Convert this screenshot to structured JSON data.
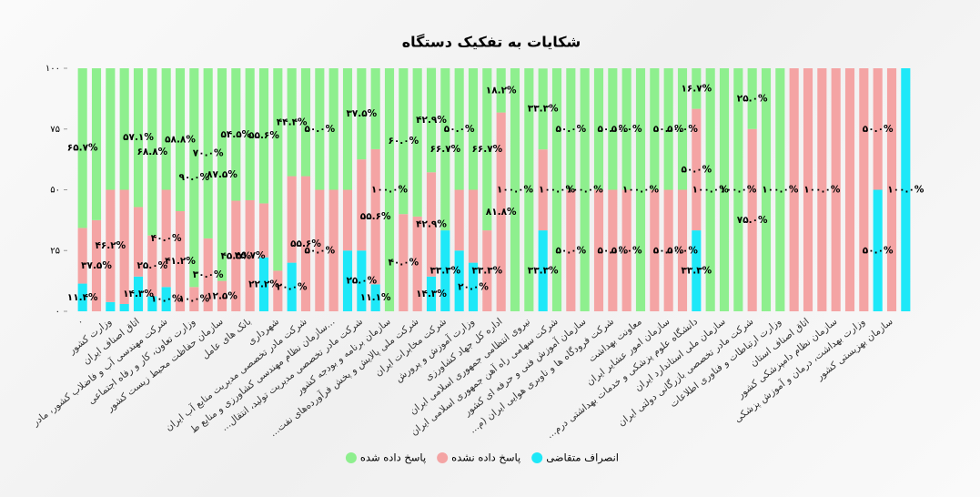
{
  "chart_data": {
    "type": "stacked_bar",
    "title": "شکایات به تفکیک دستگاه",
    "categories": [
      "۰",
      null,
      "وزارت کشور",
      null,
      "اتاق اصناف ایران",
      null,
      "شرکت مهندسی آب و فاضلاب کشور، مادر",
      null,
      "وزارت تعاون، کار و رفاه اجتماعی",
      null,
      "سازمان حفاظت محیط زیست کشور",
      null,
      "بانک های عامل",
      null,
      "شهرداری",
      null,
      "شرکت مادر تخصصی مدیریت منابع آب ایران",
      null,
      "سازمان نظام مهندسی کشاورزی و منابع ط...",
      null,
      "...شرکت مادر تخصصی مدیریت تولید، انتقال",
      null,
      "سازمان برنامه و بودجه کشور",
      null,
      "...شرکت ملی پالایش و پخش فرآورده‌های نفت",
      null,
      "شرکت مخابرات ایران",
      null,
      "وزارت آموزش و پرورش",
      null,
      "اداره کل جهاد کشاورزی",
      null,
      "نیروی انتظامی جمهوری اسلامی ایران",
      null,
      "شرکت سهامی راه آهن جمهوری اسلامی ایران",
      null,
      "سازمان آموزش فنی و حرفه ای کشور",
      null,
      "...شرکت فرودگاه ها و ناوبری هوایی ایران (م",
      null,
      "معاونت بهداشت",
      null,
      "سازمان امور عشایر ایران",
      null,
      "...دانشگاه علوم پزشکی و خدمات بهداشتی درم",
      null,
      "سازمان ملی استاندارد ایران",
      null,
      "شرکت مادر تخصصی بازرگانی دولتی ایران",
      null,
      "وزارت ارتباطات و فناوری اطلاعات",
      null,
      "اتاق اصناف استان",
      null,
      "سازمان نظام دامپزشکی کشور",
      null,
      "وزارت بهداشت، درمان و آموزش پزشکی",
      null,
      "سازمان بهزیستی کشور",
      null
    ],
    "series": [
      {
        "name": "انصراف متقاضی",
        "color": "#1ee8f8",
        "values": [
          11.4,
          0,
          3.8,
          3,
          14.3,
          6.2,
          10,
          0,
          0,
          0,
          0,
          0,
          0,
          22.2,
          0,
          20,
          0,
          0,
          0,
          25,
          25,
          11.1,
          0,
          0,
          0,
          14.3,
          33.3,
          25,
          20,
          0,
          0,
          0,
          0,
          33.3,
          0,
          0,
          0,
          0,
          0,
          0,
          0,
          0,
          0,
          0,
          33.3,
          0,
          0,
          0,
          0,
          0,
          0,
          0,
          0,
          0,
          0,
          0,
          0,
          50,
          0,
          100
        ],
        "value_labels": [
          "۱۱.۴%",
          null,
          null,
          null,
          "۱۴.۳%",
          null,
          "۱۰.۰%",
          null,
          null,
          null,
          null,
          null,
          null,
          "۲۲.۲%",
          null,
          "۲۰.۰%",
          null,
          null,
          null,
          null,
          "۲۵.۰%",
          "۱۱.۱%",
          null,
          null,
          null,
          "۱۴.۳%",
          "۳۳.۳%",
          null,
          "۲۰.۰%",
          null,
          null,
          null,
          null,
          "۳۳.۳%",
          null,
          null,
          null,
          null,
          null,
          null,
          null,
          null,
          null,
          null,
          "۳۳.۳%",
          null,
          null,
          null,
          null,
          null,
          null,
          null,
          null,
          null,
          null,
          null,
          null,
          "۵۰.۰%",
          null,
          "۱۰۰.۰%"
        ]
      },
      {
        "name": "پاسخ داده نشده",
        "color": "#f4a4a4",
        "values": [
          22.9,
          37.5,
          46.2,
          47,
          28.6,
          25,
          40,
          41.2,
          10,
          30,
          12.5,
          45.5,
          45.7,
          22.2,
          16.7,
          35.6,
          55.6,
          50,
          50,
          25,
          37.5,
          55.6,
          0,
          40,
          39,
          42.9,
          0,
          25,
          30,
          33.3,
          81.8,
          0,
          0,
          33.3,
          0,
          50,
          0,
          50,
          50,
          50,
          0,
          50,
          50,
          50,
          50,
          0,
          0,
          0,
          75,
          0,
          0,
          100,
          100,
          100,
          100,
          100,
          100,
          50,
          100,
          0
        ],
        "value_labels": [
          null,
          "۳۷.۵%",
          "۴۶.۲%",
          null,
          null,
          "۲۵.۰%",
          "۴۰.۰%",
          "۴۱.۲%",
          "۱۰.۰%",
          "۳۰.۰%",
          "۱۲.۵%",
          "۴۵.۵%",
          "۴۵.۷%",
          null,
          null,
          null,
          "۵۵.۶%",
          "۵۰.۰%",
          null,
          null,
          null,
          "۵۵.۶%",
          null,
          "۴۰.۰%",
          null,
          "۴۲.۹%",
          null,
          null,
          null,
          "۳۳.۳%",
          "۸۱.۸%",
          null,
          null,
          null,
          null,
          "۵۰.۰%",
          null,
          null,
          "۵۰.۰%",
          "۵۰.۰%",
          null,
          null,
          "۵۰.۰%",
          "۵۰.۰%",
          "۵۰.۰%",
          null,
          null,
          null,
          "۷۵.۰%",
          null,
          null,
          null,
          null,
          "۱۰۰.۰%",
          null,
          null,
          null,
          "۵۰.۰%",
          null,
          null
        ]
      },
      {
        "name": "پاسخ داده شده",
        "color": "#8eef8e",
        "values": [
          65.7,
          62.5,
          50,
          50,
          57.1,
          68.8,
          50,
          58.8,
          90,
          70,
          87.5,
          54.5,
          54.3,
          55.6,
          83.3,
          44.4,
          44.4,
          50,
          50,
          50,
          37.5,
          33.3,
          100,
          60,
          61,
          42.9,
          66.7,
          50,
          50,
          66.7,
          18.2,
          100,
          100,
          33.3,
          100,
          50,
          100,
          50,
          50,
          50,
          100,
          50,
          50,
          50,
          16.7,
          100,
          100,
          100,
          25,
          100,
          100,
          0,
          0,
          0,
          0,
          0,
          0,
          0,
          0,
          0
        ],
        "value_labels": [
          "۶۵.۷%",
          null,
          null,
          null,
          "۵۷.۱%",
          "۶۸.۸%",
          null,
          "۵۸.۸%",
          "۹۰.۰%",
          "۷۰.۰%",
          "۸۷.۵%",
          "۵۴.۵%",
          null,
          "۵۵.۶%",
          null,
          "۴۴.۴%",
          null,
          "۵۰.۰%",
          null,
          null,
          "۳۷.۵%",
          null,
          "۱۰۰.۰%",
          "۶۰.۰%",
          null,
          "۴۲.۹%",
          "۶۶.۷%",
          "۵۰.۰%",
          null,
          "۶۶.۷%",
          "۱۸.۲%",
          "۱۰۰.۰%",
          null,
          "۳۳.۳%",
          "۱۰۰.۰%",
          "۵۰.۰%",
          "۱۰۰.۰%",
          null,
          "۵۰.۰%",
          "۵۰.۰%",
          "۱۰۰.۰%",
          null,
          "۵۰.۰%",
          "۵۰.۰%",
          "۱۶.۷%",
          "۱۰۰.۰%",
          null,
          "۱۰۰.۰%",
          "۲۵.۰%",
          null,
          "۱۰۰.۰%",
          null,
          null,
          null,
          null,
          null,
          null,
          null,
          null,
          null
        ]
      }
    ],
    "ylim": [
      0,
      100
    ],
    "yticks": [
      {
        "value": 0,
        "label": "۰"
      },
      {
        "value": 25,
        "label": "۲۵"
      },
      {
        "value": 50,
        "label": "۵۰"
      },
      {
        "value": 75,
        "label": "۷۵"
      },
      {
        "value": 100,
        "label": "۱۰۰"
      }
    ],
    "grid": false,
    "legend": "bottom"
  }
}
